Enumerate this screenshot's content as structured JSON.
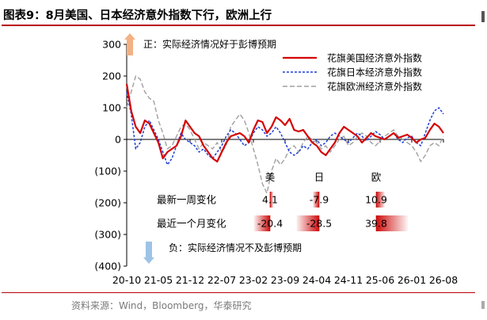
{
  "title": "图表9：8月美国、日本经济意外指数下行，欧洲上行",
  "source": "资料来源：Wind，Bloomberg，华泰研究",
  "chart_data": {
    "type": "line",
    "title": "图表9：8月美国、日本经济意外指数下行，欧洲上行",
    "xlabel": "",
    "ylabel": "",
    "ylim": [
      -400,
      300
    ],
    "yticks": [
      "300",
      "200",
      "100",
      "0",
      "(100)",
      "(200)",
      "(300)",
      "(400)"
    ],
    "xticks": [
      "20-10",
      "21-05",
      "21-12",
      "22-07",
      "23-02",
      "23-09",
      "24-04",
      "24-11",
      "25-06",
      "26-01",
      "26-08"
    ],
    "legend_position": "top-right",
    "grid": false,
    "annotations": {
      "positive": "正：实际经济情况好于彭博预期",
      "negative": "负：实际经济情况不及彭博预期"
    },
    "series": [
      {
        "name": "花旗美国经济意外指数",
        "color": "#d40000",
        "style": "solid",
        "points": [
          [
            "2020-10",
            175
          ],
          [
            "2020-11",
            90
          ],
          [
            "2020-12",
            40
          ],
          [
            "2021-01",
            20
          ],
          [
            "2021-02",
            60
          ],
          [
            "2021-03",
            50
          ],
          [
            "2021-04",
            20
          ],
          [
            "2021-05",
            -10
          ],
          [
            "2021-06",
            -60
          ],
          [
            "2021-07",
            -40
          ],
          [
            "2021-08",
            -30
          ],
          [
            "2021-09",
            -20
          ],
          [
            "2021-10",
            10
          ],
          [
            "2021-11",
            60
          ],
          [
            "2021-12",
            40
          ],
          [
            "2022-01",
            20
          ],
          [
            "2022-02",
            10
          ],
          [
            "2022-03",
            -20
          ],
          [
            "2022-04",
            -40
          ],
          [
            "2022-05",
            -60
          ],
          [
            "2022-06",
            -70
          ],
          [
            "2022-07",
            -40
          ],
          [
            "2022-08",
            -10
          ],
          [
            "2022-09",
            10
          ],
          [
            "2022-10",
            15
          ],
          [
            "2022-11",
            20
          ],
          [
            "2022-12",
            10
          ],
          [
            "2023-01",
            -10
          ],
          [
            "2023-02",
            30
          ],
          [
            "2023-03",
            60
          ],
          [
            "2023-04",
            55
          ],
          [
            "2023-05",
            20
          ],
          [
            "2023-06",
            40
          ],
          [
            "2023-07",
            70
          ],
          [
            "2023-08",
            60
          ],
          [
            "2023-09",
            45
          ],
          [
            "2023-10",
            65
          ],
          [
            "2023-11",
            30
          ],
          [
            "2023-12",
            25
          ],
          [
            "2024-01",
            30
          ],
          [
            "2024-02",
            10
          ],
          [
            "2024-03",
            -10
          ],
          [
            "2024-04",
            -20
          ],
          [
            "2024-05",
            -40
          ],
          [
            "2024-06",
            -50
          ],
          [
            "2024-07",
            -30
          ],
          [
            "2024-08",
            -10
          ],
          [
            "2024-09",
            20
          ],
          [
            "2024-10",
            40
          ],
          [
            "2024-11",
            30
          ],
          [
            "2024-12",
            20
          ],
          [
            "2025-01",
            10
          ],
          [
            "2025-02",
            -10
          ],
          [
            "2025-03",
            5
          ],
          [
            "2025-04",
            20
          ],
          [
            "2025-05",
            10
          ],
          [
            "2025-06",
            5
          ],
          [
            "2025-07",
            0
          ],
          [
            "2025-08",
            10
          ],
          [
            "2025-09",
            20
          ],
          [
            "2025-10",
            5
          ],
          [
            "2025-11",
            10
          ],
          [
            "2025-12",
            15
          ],
          [
            "2026-01",
            5
          ],
          [
            "2026-02",
            -10
          ],
          [
            "2026-03",
            0
          ],
          [
            "2026-04",
            5
          ],
          [
            "2026-05",
            30
          ],
          [
            "2026-06",
            50
          ],
          [
            "2026-07",
            40
          ],
          [
            "2026-08",
            20
          ]
        ]
      },
      {
        "name": "花旗日本经济意外指数",
        "color": "#1f3fd6",
        "style": "dashed",
        "points": [
          [
            "2020-10",
            150
          ],
          [
            "2020-11",
            80
          ],
          [
            "2020-12",
            -30
          ],
          [
            "2021-01",
            -10
          ],
          [
            "2021-02",
            40
          ],
          [
            "2021-03",
            60
          ],
          [
            "2021-04",
            30
          ],
          [
            "2021-05",
            0
          ],
          [
            "2021-06",
            -40
          ],
          [
            "2021-07",
            -80
          ],
          [
            "2021-08",
            -60
          ],
          [
            "2021-09",
            -20
          ],
          [
            "2021-10",
            20
          ],
          [
            "2021-11",
            0
          ],
          [
            "2021-12",
            -10
          ],
          [
            "2022-01",
            -20
          ],
          [
            "2022-02",
            -40
          ],
          [
            "2022-03",
            -30
          ],
          [
            "2022-04",
            -50
          ],
          [
            "2022-05",
            -60
          ],
          [
            "2022-06",
            -40
          ],
          [
            "2022-07",
            -20
          ],
          [
            "2022-08",
            10
          ],
          [
            "2022-09",
            30
          ],
          [
            "2022-10",
            20
          ],
          [
            "2022-11",
            0
          ],
          [
            "2022-12",
            -20
          ],
          [
            "2023-01",
            -10
          ],
          [
            "2023-02",
            20
          ],
          [
            "2023-03",
            40
          ],
          [
            "2023-04",
            30
          ],
          [
            "2023-05",
            10
          ],
          [
            "2023-06",
            20
          ],
          [
            "2023-07",
            40
          ],
          [
            "2023-08",
            20
          ],
          [
            "2023-09",
            -10
          ],
          [
            "2023-10",
            -40
          ],
          [
            "2023-11",
            -50
          ],
          [
            "2023-12",
            -40
          ],
          [
            "2024-01",
            -20
          ],
          [
            "2024-02",
            -30
          ],
          [
            "2024-03",
            -10
          ],
          [
            "2024-04",
            0
          ],
          [
            "2024-05",
            -20
          ],
          [
            "2024-06",
            -10
          ],
          [
            "2024-07",
            10
          ],
          [
            "2024-08",
            20
          ],
          [
            "2024-09",
            10
          ],
          [
            "2024-10",
            0
          ],
          [
            "2024-11",
            -10
          ],
          [
            "2024-12",
            5
          ],
          [
            "2025-01",
            20
          ],
          [
            "2025-02",
            10
          ],
          [
            "2025-03",
            -5
          ],
          [
            "2025-04",
            10
          ],
          [
            "2025-05",
            25
          ],
          [
            "2025-06",
            15
          ],
          [
            "2025-07",
            0
          ],
          [
            "2025-08",
            10
          ],
          [
            "2025-09",
            20
          ],
          [
            "2025-10",
            0
          ],
          [
            "2025-11",
            -10
          ],
          [
            "2025-12",
            5
          ],
          [
            "2026-01",
            10
          ],
          [
            "2026-02",
            -10
          ],
          [
            "2026-03",
            -20
          ],
          [
            "2026-04",
            20
          ],
          [
            "2026-05",
            60
          ],
          [
            "2026-06",
            90
          ],
          [
            "2026-07",
            100
          ],
          [
            "2026-08",
            80
          ]
        ]
      },
      {
        "name": "花旗欧洲经济意外指数",
        "color": "#a0a0a0",
        "style": "dashed",
        "points": [
          [
            "2020-10",
            100
          ],
          [
            "2020-11",
            150
          ],
          [
            "2020-12",
            200
          ],
          [
            "2021-01",
            190
          ],
          [
            "2021-02",
            150
          ],
          [
            "2021-03",
            130
          ],
          [
            "2021-04",
            120
          ],
          [
            "2021-05",
            60
          ],
          [
            "2021-06",
            20
          ],
          [
            "2021-07",
            -30
          ],
          [
            "2021-08",
            -20
          ],
          [
            "2021-09",
            10
          ],
          [
            "2021-10",
            40
          ],
          [
            "2021-11",
            50
          ],
          [
            "2021-12",
            30
          ],
          [
            "2022-01",
            0
          ],
          [
            "2022-02",
            -30
          ],
          [
            "2022-03",
            -10
          ],
          [
            "2022-04",
            -20
          ],
          [
            "2022-05",
            -30
          ],
          [
            "2022-06",
            -10
          ],
          [
            "2022-07",
            -40
          ],
          [
            "2022-08",
            -20
          ],
          [
            "2022-09",
            40
          ],
          [
            "2022-10",
            60
          ],
          [
            "2022-11",
            80
          ],
          [
            "2022-12",
            60
          ],
          [
            "2023-01",
            20
          ],
          [
            "2023-02",
            -30
          ],
          [
            "2023-03",
            -80
          ],
          [
            "2023-04",
            -140
          ],
          [
            "2023-05",
            -170
          ],
          [
            "2023-06",
            -100
          ],
          [
            "2023-07",
            -60
          ],
          [
            "2023-08",
            -80
          ],
          [
            "2023-09",
            -60
          ],
          [
            "2023-10",
            -30
          ],
          [
            "2023-11",
            -20
          ],
          [
            "2023-12",
            -40
          ],
          [
            "2024-01",
            -10
          ],
          [
            "2024-02",
            10
          ],
          [
            "2024-03",
            0
          ],
          [
            "2024-04",
            -10
          ],
          [
            "2024-05",
            -30
          ],
          [
            "2024-06",
            -20
          ],
          [
            "2024-07",
            -40
          ],
          [
            "2024-08",
            -20
          ],
          [
            "2024-09",
            0
          ],
          [
            "2024-10",
            10
          ],
          [
            "2024-11",
            -20
          ],
          [
            "2024-12",
            -10
          ],
          [
            "2025-01",
            10
          ],
          [
            "2025-02",
            20
          ],
          [
            "2025-03",
            10
          ],
          [
            "2025-04",
            -10
          ],
          [
            "2025-05",
            -20
          ],
          [
            "2025-06",
            -5
          ],
          [
            "2025-07",
            10
          ],
          [
            "2025-08",
            20
          ],
          [
            "2025-09",
            30
          ],
          [
            "2025-10",
            10
          ],
          [
            "2025-11",
            0
          ],
          [
            "2025-12",
            -10
          ],
          [
            "2026-01",
            -20
          ],
          [
            "2026-02",
            -40
          ],
          [
            "2026-03",
            -70
          ],
          [
            "2026-04",
            -50
          ],
          [
            "2026-05",
            -20
          ],
          [
            "2026-06",
            -10
          ],
          [
            "2026-07",
            -20
          ],
          [
            "2026-08",
            10
          ]
        ]
      }
    ],
    "table": {
      "columns": [
        "美",
        "日",
        "欧"
      ],
      "rows": [
        {
          "label": "最新一周变化",
          "values": [
            "4.1",
            "-7.9",
            "10.9"
          ],
          "numbers": [
            4.1,
            -7.9,
            10.9
          ]
        },
        {
          "label": "最近一个月变化",
          "values": [
            "-20.4",
            "-28.5",
            "39.8"
          ],
          "numbers": [
            -20.4,
            -28.5,
            39.8
          ]
        }
      ]
    }
  }
}
